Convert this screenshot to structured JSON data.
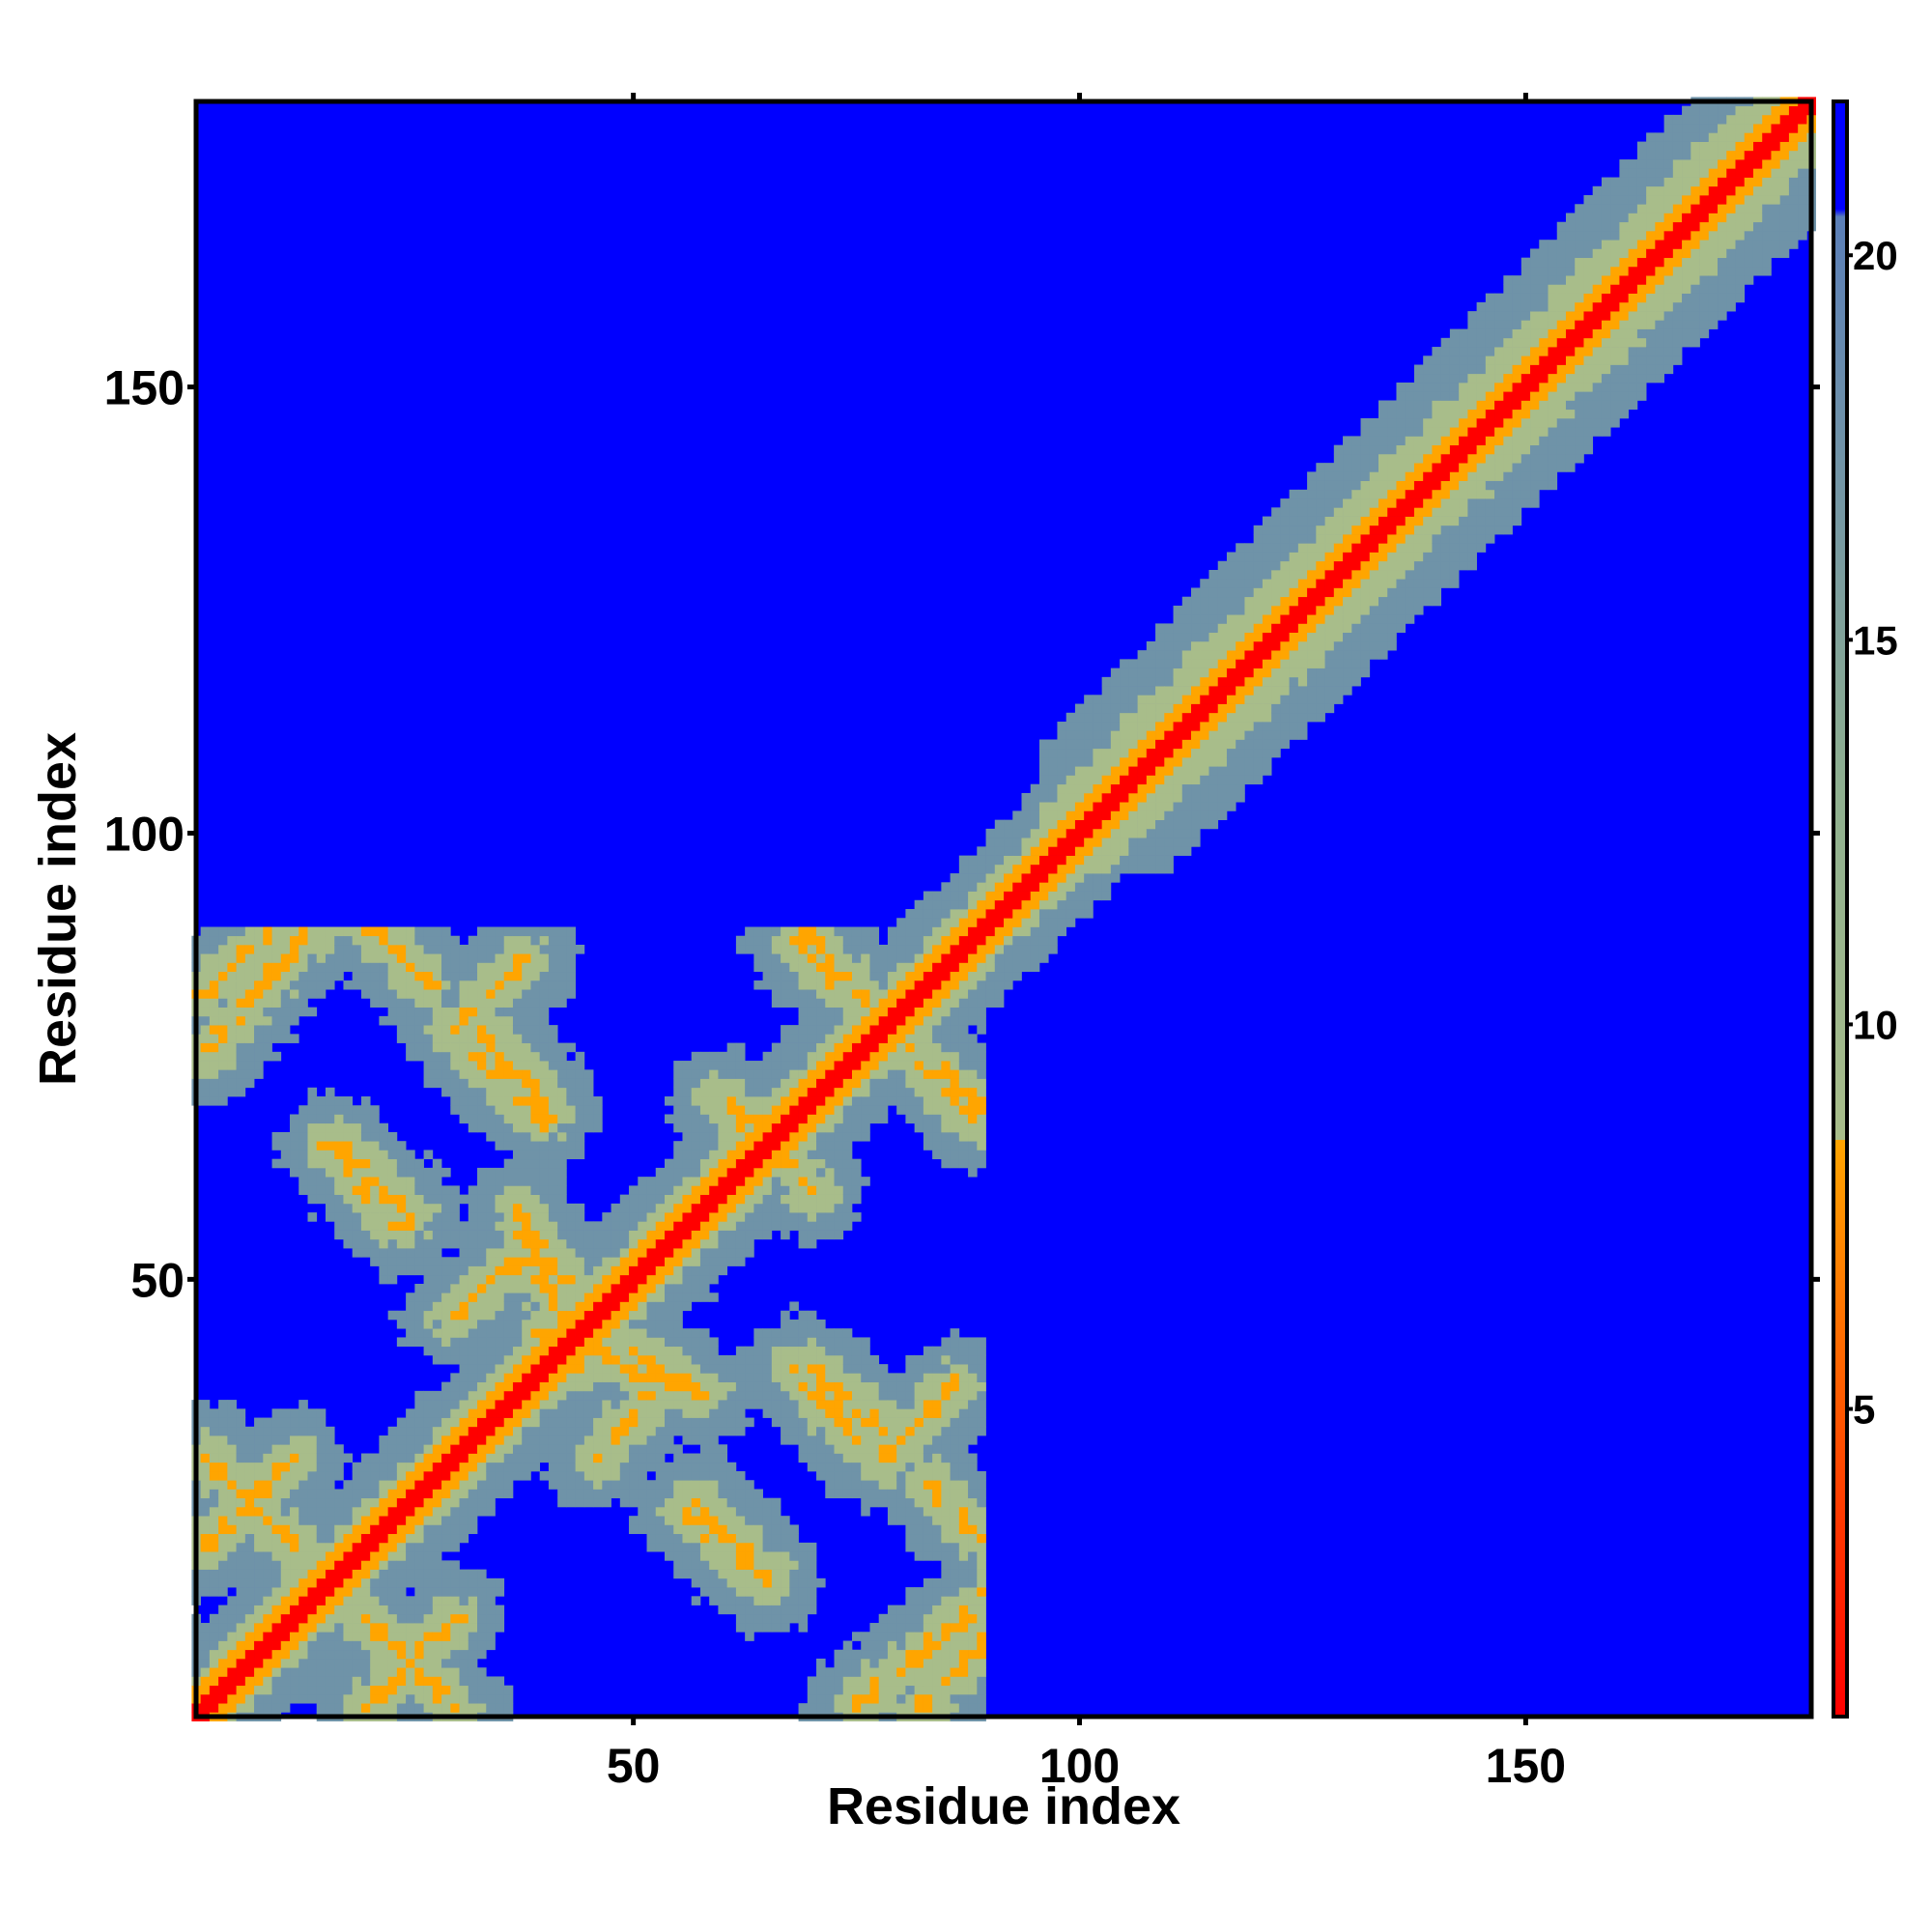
{
  "chart_data": {
    "type": "heatmap",
    "title": "",
    "xlabel": "Residue index",
    "ylabel": "Residue index",
    "xlim": [
      1,
      182
    ],
    "ylim": [
      1,
      182
    ],
    "x_ticks": [
      50,
      100,
      150
    ],
    "y_ticks": [
      50,
      100,
      150
    ],
    "colorbar": {
      "range": [
        1,
        22
      ],
      "ticks": [
        5,
        10,
        15,
        20
      ],
      "stops": [
        {
          "value": 1,
          "color": "#ff0000"
        },
        {
          "value": 8.5,
          "color": "#ffa500"
        },
        {
          "value": 8.5,
          "color": "#a8bd8a"
        },
        {
          "value": 13,
          "color": "#8fb08f"
        },
        {
          "value": 20.5,
          "color": "#5b7fb8"
        },
        {
          "value": 20.6,
          "color": "#0000ff"
        },
        {
          "value": 22,
          "color": "#0000ff"
        }
      ]
    },
    "colors": {
      "background": "#0000ff",
      "near": "#ff0000",
      "close": "#ffa500",
      "medium": "#a8bd8a",
      "far": "#6f93a8"
    },
    "grid": false,
    "legend": "colorbar-right",
    "matrix_description_values": {
      "n_residues": 182,
      "diagonal_value": 1,
      "cutoff_value": 22
    },
    "contact_bands": [
      {
        "from": [
          2,
          82
        ],
        "to": [
          15,
          95
        ]
      },
      {
        "from": [
          15,
          95
        ],
        "to": [
          27,
          83
        ]
      },
      {
        "from": [
          2,
          30
        ],
        "to": [
          12,
          20
        ]
      },
      {
        "from": [
          20,
          2
        ],
        "to": [
          30,
          12
        ]
      },
      {
        "from": [
          33,
          78
        ],
        "to": [
          40,
          70
        ]
      },
      {
        "from": [
          17,
          65
        ],
        "to": [
          25,
          57
        ]
      },
      {
        "from": [
          37,
          58
        ],
        "to": [
          42,
          50
        ]
      },
      {
        "from": [
          40,
          44
        ],
        "to": [
          55,
          38
        ]
      },
      {
        "from": [
          56,
          24
        ],
        "to": [
          65,
          16
        ]
      },
      {
        "from": [
          68,
          40
        ],
        "to": [
          75,
          32
        ]
      },
      {
        "from": [
          68,
          90
        ],
        "to": [
          88,
          68
        ]
      },
      {
        "from": [
          63,
          68
        ],
        "to": [
          70,
          60
        ]
      },
      {
        "from": [
          75,
          2
        ],
        "to": [
          92,
          16
        ]
      },
      {
        "from": [
          46,
          30
        ],
        "to": [
          52,
          37
        ]
      },
      {
        "from": [
          78,
          30
        ],
        "to": [
          86,
          38
        ]
      }
    ]
  }
}
